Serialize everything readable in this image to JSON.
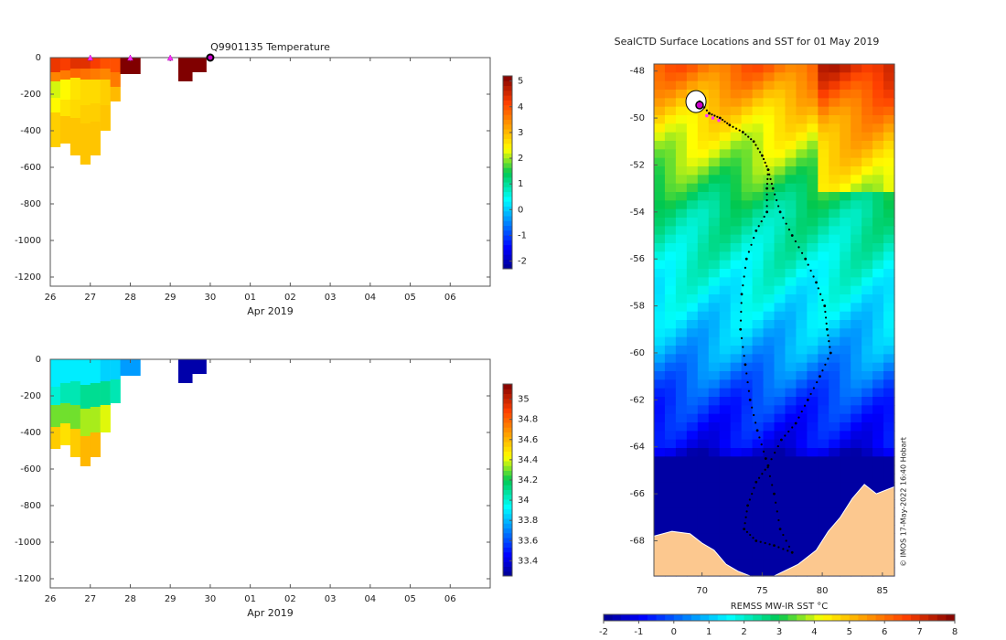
{
  "temperature_panel": {
    "title": "Q9901135  Temperature",
    "xlabel": "Apr 2019",
    "x_tick_labels": [
      "26",
      "27",
      "28",
      "29",
      "30",
      "01",
      "02",
      "03",
      "04",
      "05",
      "06"
    ],
    "y_tick_labels": [
      "0",
      "-200",
      "-400",
      "-600",
      "-800",
      "-1000",
      "-1200"
    ],
    "colorbar_labels": [
      "5",
      "4",
      "3",
      "2",
      "1",
      "0",
      "-1",
      "-2"
    ]
  },
  "salinity_panel": {
    "title": "",
    "xlabel": "Apr 2019",
    "x_tick_labels": [
      "26",
      "27",
      "28",
      "29",
      "30",
      "01",
      "02",
      "03",
      "04",
      "05",
      "06"
    ],
    "y_tick_labels": [
      "0",
      "-200",
      "-400",
      "-600",
      "-800",
      "-1000",
      "-1200"
    ],
    "colorbar_labels": [
      "35",
      "34.8",
      "34.6",
      "34.4",
      "34.2",
      "34",
      "33.8",
      "33.6",
      "33.4"
    ]
  },
  "map_panel": {
    "title": "SealCTD Surface Locations and SST for 01 May 2019",
    "x_tick_labels": [
      "70",
      "75",
      "80",
      "85"
    ],
    "y_tick_labels": [
      "-48",
      "-50",
      "-52",
      "-54",
      "-56",
      "-58",
      "-60",
      "-62",
      "-64",
      "-66",
      "-68"
    ],
    "colorbar_title": "REMSS MW-IR SST °C",
    "colorbar_labels": [
      "-2",
      "-1",
      "0",
      "1",
      "2",
      "3",
      "4",
      "5",
      "6",
      "7",
      "8"
    ],
    "credit": "© IMOS 17-May-2022 16:40 Hobart"
  },
  "chart_data": [
    {
      "type": "heatmap",
      "title": "Q9901135  Temperature",
      "variable": "temperature",
      "xlabel": "Apr 2019",
      "ylabel": "",
      "x_range_days": [
        26,
        37
      ],
      "ylim": [
        -1250,
        0
      ],
      "clim": [
        -2.3,
        5.2
      ],
      "profile_markers_day": [
        27,
        28,
        29,
        30
      ],
      "profiles": [
        {
          "day": 26.0,
          "depth": 490,
          "layers": [
            [
              0,
              4.3
            ],
            [
              80,
              3.5
            ],
            [
              130,
              2.2
            ],
            [
              220,
              2.4
            ],
            [
              300,
              2.8
            ]
          ]
        },
        {
          "day": 26.25,
          "depth": 470,
          "layers": [
            [
              0,
              4.2
            ],
            [
              70,
              3.6
            ],
            [
              120,
              2.4
            ],
            [
              230,
              2.6
            ],
            [
              320,
              2.9
            ]
          ]
        },
        {
          "day": 26.5,
          "depth": 535,
          "layers": [
            [
              0,
              4.4
            ],
            [
              60,
              3.8
            ],
            [
              110,
              2.6
            ],
            [
              230,
              2.7
            ],
            [
              330,
              2.9
            ]
          ]
        },
        {
          "day": 26.75,
          "depth": 585,
          "layers": [
            [
              0,
              4.4
            ],
            [
              60,
              3.7
            ],
            [
              120,
              2.7
            ],
            [
              260,
              2.8
            ],
            [
              360,
              2.9
            ]
          ]
        },
        {
          "day": 27.0,
          "depth": 535,
          "layers": [
            [
              0,
              4.2
            ],
            [
              60,
              3.6
            ],
            [
              120,
              2.7
            ],
            [
              250,
              2.8
            ],
            [
              350,
              2.9
            ]
          ]
        },
        {
          "day": 27.25,
          "depth": 400,
          "layers": [
            [
              0,
              4.0
            ],
            [
              60,
              3.5
            ],
            [
              120,
              2.8
            ],
            [
              260,
              2.9
            ]
          ]
        },
        {
          "day": 27.5,
          "depth": 240,
          "layers": [
            [
              0,
              4.0
            ],
            [
              80,
              3.6
            ],
            [
              160,
              3.0
            ]
          ]
        },
        {
          "day": 27.75,
          "depth": 90,
          "layers": [
            [
              0,
              5.2
            ]
          ]
        },
        {
          "day": 28.0,
          "depth": 90,
          "layers": [
            [
              0,
              5.2
            ]
          ]
        },
        {
          "day": 29.2,
          "depth": 130,
          "layers": [
            [
              0,
              5.2
            ]
          ]
        },
        {
          "day": 29.55,
          "depth": 80,
          "layers": [
            [
              0,
              5.2
            ]
          ]
        }
      ]
    },
    {
      "type": "heatmap",
      "title": "",
      "variable": "salinity",
      "xlabel": "Apr 2019",
      "ylabel": "",
      "x_range_days": [
        26,
        37
      ],
      "ylim": [
        -1250,
        0
      ],
      "clim": [
        33.25,
        35.15
      ],
      "profiles": [
        {
          "day": 26.0,
          "depth": 490,
          "layers": [
            [
              0,
              33.9
            ],
            [
              150,
              34.0
            ],
            [
              250,
              34.3
            ],
            [
              370,
              34.55
            ]
          ]
        },
        {
          "day": 26.25,
          "depth": 470,
          "layers": [
            [
              0,
              33.9
            ],
            [
              130,
              34.05
            ],
            [
              240,
              34.3
            ],
            [
              350,
              34.5
            ]
          ]
        },
        {
          "day": 26.5,
          "depth": 535,
          "layers": [
            [
              0,
              33.9
            ],
            [
              120,
              34.05
            ],
            [
              250,
              34.3
            ],
            [
              380,
              34.55
            ]
          ]
        },
        {
          "day": 26.75,
          "depth": 585,
          "layers": [
            [
              0,
              33.9
            ],
            [
              140,
              34.1
            ],
            [
              270,
              34.35
            ],
            [
              420,
              34.6
            ]
          ]
        },
        {
          "day": 27.0,
          "depth": 535,
          "layers": [
            [
              0,
              33.9
            ],
            [
              130,
              34.1
            ],
            [
              260,
              34.35
            ],
            [
              400,
              34.6
            ]
          ]
        },
        {
          "day": 27.25,
          "depth": 400,
          "layers": [
            [
              0,
              33.85
            ],
            [
              120,
              34.1
            ],
            [
              250,
              34.4
            ]
          ]
        },
        {
          "day": 27.5,
          "depth": 240,
          "layers": [
            [
              0,
              33.85
            ],
            [
              110,
              34.05
            ]
          ]
        },
        {
          "day": 27.75,
          "depth": 90,
          "layers": [
            [
              0,
              33.75
            ]
          ]
        },
        {
          "day": 28.0,
          "depth": 90,
          "layers": [
            [
              0,
              33.75
            ]
          ]
        },
        {
          "day": 29.2,
          "depth": 130,
          "layers": [
            [
              0,
              33.3
            ]
          ]
        },
        {
          "day": 29.55,
          "depth": 80,
          "layers": [
            [
              0,
              33.3
            ]
          ]
        }
      ]
    },
    {
      "type": "heatmap",
      "title": "SealCTD Surface Locations and SST for 01 May 2019",
      "variable": "sea surface temperature (°C)",
      "xlabel": "",
      "ylabel": "",
      "xlim_lon": [
        66,
        86
      ],
      "ylim_lat": [
        -69.5,
        -47.7
      ],
      "clim": [
        -2,
        8
      ],
      "sst_by_lat": [
        {
          "lat": -48,
          "sst": 6.0
        },
        {
          "lat": -50,
          "sst": 4.6
        },
        {
          "lat": -52,
          "sst": 3.6
        },
        {
          "lat": -54,
          "sst": 2.5
        },
        {
          "lat": -56,
          "sst": 2.0
        },
        {
          "lat": -58,
          "sst": 1.4
        },
        {
          "lat": -60,
          "sst": 0.7
        },
        {
          "lat": -62,
          "sst": -0.3
        },
        {
          "lat": -64,
          "sst": -1.0
        },
        {
          "lat": -64.5,
          "sst": -1.8
        },
        {
          "lat": -69.5,
          "sst": -1.8
        }
      ],
      "track": [
        [
          69.8,
          -49.3
        ],
        [
          70.6,
          -49.8
        ],
        [
          71.5,
          -50.0
        ],
        [
          72.3,
          -50.3
        ],
        [
          73.4,
          -50.6
        ],
        [
          74.3,
          -51.0
        ],
        [
          75.0,
          -51.6
        ],
        [
          75.5,
          -52.2
        ],
        [
          75.9,
          -53.0
        ],
        [
          76.5,
          -54.0
        ],
        [
          77.5,
          -55.0
        ],
        [
          78.6,
          -56.0
        ],
        [
          79.5,
          -57.0
        ],
        [
          80.2,
          -58.0
        ],
        [
          80.4,
          -59.0
        ],
        [
          80.7,
          -60.0
        ],
        [
          79.8,
          -61.0
        ],
        [
          78.8,
          -62.0
        ],
        [
          77.8,
          -63.0
        ],
        [
          76.6,
          -63.7
        ],
        [
          75.5,
          -64.8
        ],
        [
          74.5,
          -65.5
        ],
        [
          73.8,
          -66.5
        ],
        [
          73.5,
          -67.5
        ],
        [
          74.5,
          -68.0
        ],
        [
          76.0,
          -68.2
        ],
        [
          77.5,
          -68.5
        ],
        [
          76.5,
          -67.5
        ],
        [
          76.0,
          -66.0
        ],
        [
          75.3,
          -64.5
        ],
        [
          74.6,
          -63.3
        ],
        [
          74.0,
          -62.0
        ],
        [
          73.6,
          -60.5
        ],
        [
          73.2,
          -59.0
        ],
        [
          73.3,
          -57.5
        ],
        [
          73.7,
          -56.0
        ],
        [
          74.5,
          -54.8
        ],
        [
          75.4,
          -54.0
        ],
        [
          75.4,
          -53.0
        ],
        [
          75.5,
          -52.2
        ]
      ]
    }
  ]
}
